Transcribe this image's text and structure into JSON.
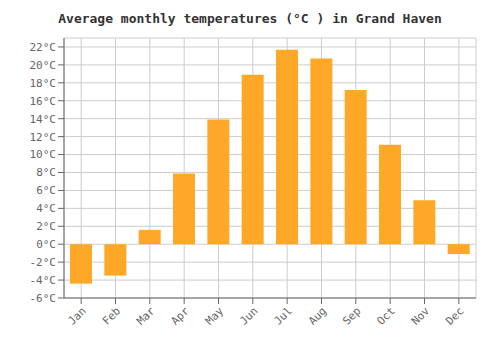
{
  "chart_data": {
    "type": "bar",
    "title": "Average monthly temperatures (°C ) in Grand Haven",
    "categories": [
      "Jan",
      "Feb",
      "Mar",
      "Apr",
      "May",
      "Jun",
      "Jul",
      "Aug",
      "Sep",
      "Oct",
      "Nov",
      "Dec"
    ],
    "values": [
      -4.4,
      -3.5,
      1.6,
      7.9,
      13.9,
      18.9,
      21.7,
      20.7,
      17.2,
      11.1,
      4.9,
      -1.1
    ],
    "color": "#FFA726",
    "ylim": [
      -6,
      23
    ],
    "yticks": [
      {
        "value": -6,
        "label": "-6°C"
      },
      {
        "value": -4,
        "label": "-4°C"
      },
      {
        "value": -2,
        "label": "-2°C"
      },
      {
        "value": 0,
        "label": "0°C"
      },
      {
        "value": 2,
        "label": "2°C"
      },
      {
        "value": 4,
        "label": "4°C"
      },
      {
        "value": 6,
        "label": "6°C"
      },
      {
        "value": 8,
        "label": "8°C"
      },
      {
        "value": 10,
        "label": "10°C"
      },
      {
        "value": 12,
        "label": "12°C"
      },
      {
        "value": 14,
        "label": "14°C"
      },
      {
        "value": 16,
        "label": "16°C"
      },
      {
        "value": 18,
        "label": "18°C"
      },
      {
        "value": 20,
        "label": "20°C"
      },
      {
        "value": 22,
        "label": "22°C"
      }
    ],
    "grid": true
  }
}
